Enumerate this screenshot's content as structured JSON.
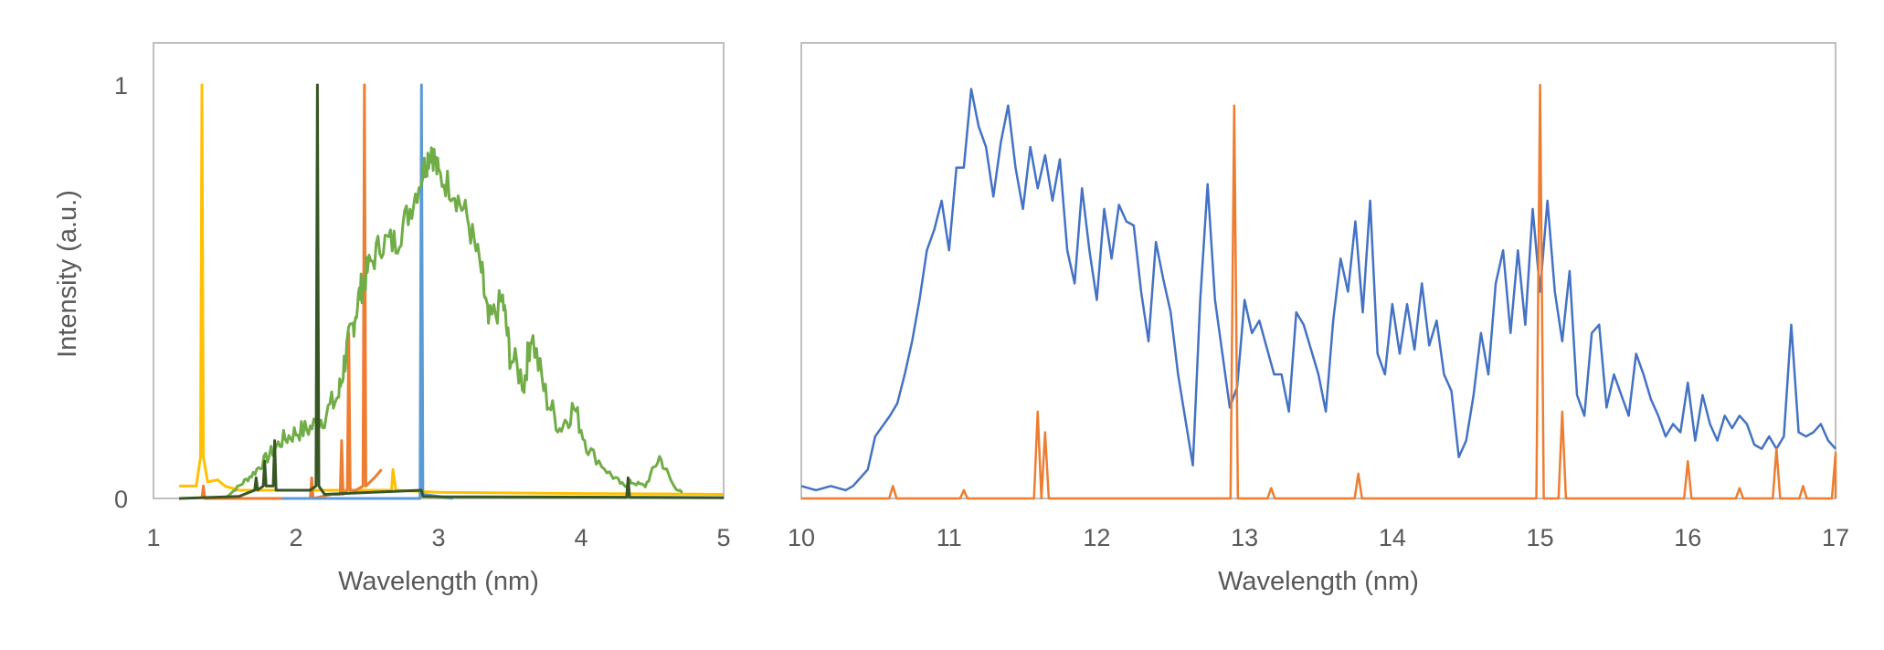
{
  "chart_data": [
    {
      "type": "line",
      "title": "",
      "xlabel": "Wavelength (nm)",
      "ylabel": "Intensity (a.u.)",
      "xlim": [
        1,
        5
      ],
      "ylim": [
        0,
        1.1
      ],
      "xticks": [
        "1",
        "2",
        "3",
        "4",
        "5"
      ],
      "yticks": [
        "0",
        "1"
      ],
      "grid": false,
      "legend": "none",
      "series": [
        {
          "name": "yellow",
          "color": "#FFC000",
          "x": [
            1.18,
            1.3,
            1.33,
            1.34,
            1.35,
            1.38,
            1.45,
            1.5,
            1.6,
            2.0,
            2.67,
            2.68,
            2.7,
            3.0,
            4.0,
            5.0
          ],
          "y": [
            0.03,
            0.03,
            0.1,
            1.0,
            0.1,
            0.04,
            0.045,
            0.03,
            0.02,
            0.02,
            0.02,
            0.07,
            0.02,
            0.015,
            0.012,
            0.01
          ]
        },
        {
          "name": "orange",
          "color": "#ED7D31",
          "x": [
            1.34,
            1.35,
            1.36,
            2.0,
            2.1,
            2.11,
            2.12,
            2.25,
            2.31,
            2.32,
            2.33,
            2.36,
            2.37,
            2.38,
            2.42,
            2.47,
            2.48,
            2.49,
            2.55,
            2.6
          ],
          "y": [
            0,
            0.03,
            0,
            0.0,
            0.0,
            0.05,
            0.0,
            0.01,
            0.01,
            0.14,
            0.01,
            0.02,
            0.4,
            0.02,
            0.02,
            0.03,
            1.0,
            0.03,
            0.05,
            0.07
          ]
        },
        {
          "name": "blue",
          "color": "#5B9BD5",
          "x": [
            1.9,
            2.8,
            2.87,
            2.88,
            2.89,
            3.0,
            3.1
          ],
          "y": [
            0,
            0,
            0,
            1.0,
            0.01,
            0.005,
            0
          ]
        },
        {
          "name": "green",
          "color": "#70AD47",
          "x": [
            1.5,
            1.6,
            1.7,
            1.8,
            1.9,
            2.0,
            2.1,
            2.2,
            2.3,
            2.35,
            2.4,
            2.45,
            2.5,
            2.6,
            2.7,
            2.8,
            2.9,
            2.95,
            3.0,
            3.1,
            3.2,
            3.3,
            3.35,
            3.45,
            3.5,
            3.6,
            3.65,
            3.75,
            3.85,
            3.95,
            4.05,
            4.2,
            4.3,
            4.35,
            4.45,
            4.55,
            4.65,
            4.72
          ],
          "y": [
            0.0,
            0.03,
            0.06,
            0.1,
            0.14,
            0.16,
            0.17,
            0.2,
            0.25,
            0.35,
            0.42,
            0.5,
            0.55,
            0.62,
            0.62,
            0.7,
            0.8,
            0.85,
            0.78,
            0.75,
            0.68,
            0.55,
            0.42,
            0.48,
            0.35,
            0.28,
            0.4,
            0.25,
            0.17,
            0.22,
            0.12,
            0.06,
            0.03,
            0.04,
            0.03,
            0.1,
            0.03,
            0.01
          ]
        },
        {
          "name": "dark-green",
          "color": "#375623",
          "x": [
            1.18,
            1.6,
            1.71,
            1.72,
            1.73,
            1.77,
            1.78,
            1.79,
            1.84,
            1.85,
            1.86,
            2.1,
            2.14,
            2.15,
            2.16,
            2.2,
            2.88,
            2.89,
            3.0,
            4.32,
            4.33,
            4.34,
            5.0
          ],
          "y": [
            0.0,
            0.005,
            0.02,
            0.05,
            0.02,
            0.03,
            0.09,
            0.03,
            0.03,
            0.14,
            0.02,
            0.02,
            0.03,
            1.0,
            0.03,
            0.01,
            0.02,
            0.005,
            0.004,
            0.003,
            0.05,
            0.003,
            0.002
          ]
        }
      ]
    },
    {
      "type": "line",
      "title": "",
      "xlabel": "Wavelength (nm)",
      "ylabel": "",
      "xlim": [
        10,
        17
      ],
      "ylim": [
        0,
        1.1
      ],
      "xticks": [
        "10",
        "11",
        "12",
        "13",
        "14",
        "15",
        "16",
        "17"
      ],
      "grid": false,
      "legend": "none",
      "series": [
        {
          "name": "blue",
          "color": "#4472C4",
          "x": [
            10.0,
            10.1,
            10.2,
            10.3,
            10.35,
            10.45,
            10.5,
            10.6,
            10.65,
            10.7,
            10.75,
            10.8,
            10.85,
            10.9,
            10.95,
            11.0,
            11.05,
            11.1,
            11.15,
            11.2,
            11.25,
            11.3,
            11.35,
            11.4,
            11.45,
            11.5,
            11.55,
            11.6,
            11.65,
            11.7,
            11.75,
            11.8,
            11.85,
            11.9,
            11.95,
            12.0,
            12.05,
            12.1,
            12.15,
            12.2,
            12.25,
            12.3,
            12.35,
            12.4,
            12.45,
            12.5,
            12.55,
            12.6,
            12.65,
            12.7,
            12.75,
            12.8,
            12.85,
            12.9,
            12.95,
            13.0,
            13.05,
            13.1,
            13.2,
            13.25,
            13.3,
            13.35,
            13.4,
            13.5,
            13.55,
            13.6,
            13.65,
            13.7,
            13.75,
            13.8,
            13.85,
            13.9,
            13.95,
            14.0,
            14.05,
            14.1,
            14.15,
            14.2,
            14.25,
            14.3,
            14.35,
            14.4,
            14.45,
            14.5,
            14.55,
            14.6,
            14.65,
            14.7,
            14.75,
            14.8,
            14.85,
            14.9,
            14.95,
            15.0,
            15.05,
            15.1,
            15.15,
            15.2,
            15.25,
            15.3,
            15.35,
            15.4,
            15.45,
            15.5,
            15.55,
            15.6,
            15.65,
            15.7,
            15.75,
            15.8,
            15.85,
            15.9,
            15.95,
            16.0,
            16.05,
            16.1,
            16.15,
            16.2,
            16.25,
            16.3,
            16.35,
            16.4,
            16.45,
            16.5,
            16.55,
            16.6,
            16.65,
            16.7,
            16.75,
            16.8,
            16.85,
            16.9,
            16.95,
            17.0
          ],
          "y": [
            0.03,
            0.02,
            0.03,
            0.02,
            0.03,
            0.07,
            0.15,
            0.2,
            0.23,
            0.3,
            0.38,
            0.48,
            0.6,
            0.65,
            0.72,
            0.6,
            0.8,
            0.8,
            0.99,
            0.9,
            0.85,
            0.73,
            0.86,
            0.95,
            0.8,
            0.7,
            0.85,
            0.75,
            0.83,
            0.72,
            0.82,
            0.6,
            0.52,
            0.75,
            0.6,
            0.48,
            0.7,
            0.58,
            0.71,
            0.67,
            0.66,
            0.5,
            0.38,
            0.62,
            0.53,
            0.45,
            0.3,
            0.19,
            0.08,
            0.48,
            0.76,
            0.48,
            0.35,
            0.22,
            0.27,
            0.48,
            0.4,
            0.43,
            0.3,
            0.3,
            0.21,
            0.45,
            0.42,
            0.3,
            0.21,
            0.43,
            0.58,
            0.5,
            0.67,
            0.45,
            0.72,
            0.35,
            0.3,
            0.47,
            0.35,
            0.47,
            0.36,
            0.52,
            0.37,
            0.43,
            0.3,
            0.26,
            0.1,
            0.14,
            0.25,
            0.4,
            0.3,
            0.52,
            0.6,
            0.4,
            0.6,
            0.42,
            0.7,
            0.5,
            0.72,
            0.5,
            0.38,
            0.55,
            0.25,
            0.2,
            0.4,
            0.42,
            0.22,
            0.3,
            0.25,
            0.2,
            0.35,
            0.3,
            0.24,
            0.2,
            0.15,
            0.18,
            0.16,
            0.28,
            0.14,
            0.25,
            0.18,
            0.14,
            0.2,
            0.17,
            0.2,
            0.18,
            0.13,
            0.12,
            0.15,
            0.12,
            0.15,
            0.42,
            0.16,
            0.15,
            0.16,
            0.18,
            0.14,
            0.12
          ]
        },
        {
          "name": "orange",
          "color": "#ED7D31",
          "peaks_x": [
            10.62,
            11.1,
            11.6,
            11.65,
            12.93,
            13.18,
            13.77,
            15.0,
            15.15,
            16.0,
            16.35,
            16.6,
            16.78,
            17.0
          ],
          "peaks_y": [
            0.03,
            0.02,
            0.21,
            0.16,
            0.95,
            0.025,
            0.06,
            1.0,
            0.21,
            0.09,
            0.025,
            0.12,
            0.03,
            0.11
          ]
        }
      ]
    }
  ]
}
